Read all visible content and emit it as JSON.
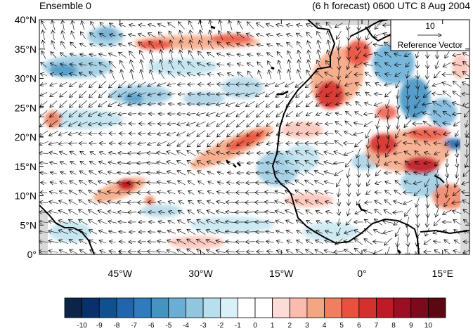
{
  "header": {
    "left_title": "Ensemble 0",
    "right_title": "(6 h forecast) 0600 UTC 8 Aug 2004"
  },
  "map": {
    "lon_range": [
      -60,
      20
    ],
    "lat_range": [
      0,
      40
    ],
    "lat_ticks": [
      {
        "value": 40,
        "label": "40°N"
      },
      {
        "value": 35,
        "label": "35°N"
      },
      {
        "value": 30,
        "label": "30°N"
      },
      {
        "value": 25,
        "label": "25°N"
      },
      {
        "value": 20,
        "label": "20°N"
      },
      {
        "value": 15,
        "label": "15°N"
      },
      {
        "value": 10,
        "label": "10°N"
      },
      {
        "value": 5,
        "label": "5°N"
      },
      {
        "value": 0,
        "label": "0°"
      }
    ],
    "lon_ticks": [
      {
        "value": -45,
        "label": "45°W"
      },
      {
        "value": -30,
        "label": "30°W"
      },
      {
        "value": -15,
        "label": "15°W"
      },
      {
        "value": 0,
        "label": "0°"
      },
      {
        "value": 15,
        "label": "15°E"
      }
    ],
    "reference_vector": {
      "value": "10",
      "label": "Reference Vector"
    }
  },
  "colorbar": {
    "labels": [
      "-10",
      "-9",
      "-8",
      "-7",
      "-6",
      "-5",
      "-4",
      "-3",
      "-2",
      "-1",
      "0",
      "1",
      "2",
      "3",
      "4",
      "5",
      "6",
      "7",
      "8",
      "9",
      "10"
    ],
    "colors": [
      "#0c2448",
      "#08306b",
      "#10508f",
      "#2166ac",
      "#2f7bbd",
      "#4393c3",
      "#6aaed6",
      "#92c5de",
      "#b8dfec",
      "#daf0f8",
      "#ffffff",
      "#ffffff",
      "#fddbd7",
      "#fbbcae",
      "#f4a582",
      "#ef7f5f",
      "#e9503e",
      "#d6302e",
      "#c01a26",
      "#9c0e23",
      "#7a0a1c",
      "#5c0812"
    ]
  }
}
